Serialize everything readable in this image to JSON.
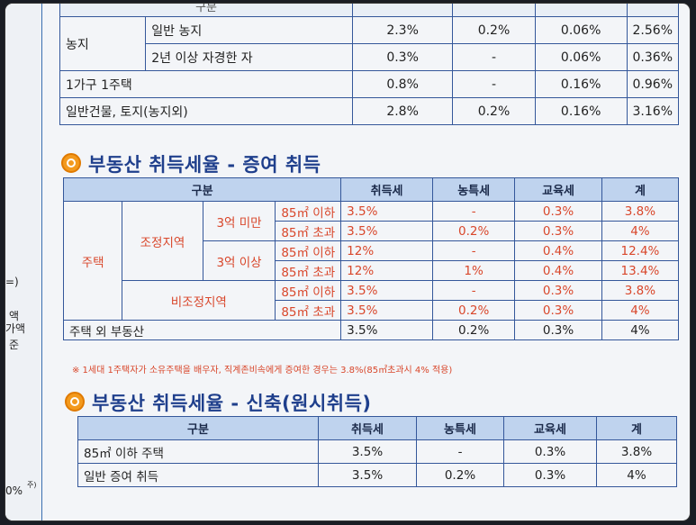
{
  "left_strip": {
    "items": [
      "=)",
      "액",
      "가액",
      "준",
      "0%",
      "주)"
    ]
  },
  "table1": {
    "header_partial": "구분",
    "rows": [
      {
        "g1": "농지",
        "g2": "일반 농지",
        "acq": "2.3%",
        "farm": "0.2%",
        "edu": "0.06%",
        "total": "2.56%"
      },
      {
        "g2": "2년 이상 자경한 자",
        "acq": "0.3%",
        "farm": "-",
        "edu": "0.06%",
        "total": "0.36%"
      },
      {
        "g1": "1가구 1주택",
        "acq": "0.8%",
        "farm": "-",
        "edu": "0.16%",
        "total": "0.96%"
      },
      {
        "g1": "일반건물, 토지(농지외)",
        "acq": "2.8%",
        "farm": "0.2%",
        "edu": "0.16%",
        "total": "3.16%"
      }
    ]
  },
  "section2": {
    "title": "부동산 취득세율 - 증여 취득",
    "headers": [
      "구분",
      "취득세",
      "농특세",
      "교육세",
      "계"
    ],
    "house": "주택",
    "adjusted": "조정지역",
    "non_adjusted": "비조정지역",
    "under3": "3억 미만",
    "over3": "3억 이상",
    "rows": [
      {
        "size": "85㎡ 이하",
        "acq": "3.5%",
        "farm": "-",
        "edu": "0.3%",
        "total": "3.8%"
      },
      {
        "size": "85㎡ 초과",
        "acq": "3.5%",
        "farm": "0.2%",
        "edu": "0.3%",
        "total": "4%"
      },
      {
        "size": "85㎡ 이하",
        "acq": "12%",
        "farm": "-",
        "edu": "0.4%",
        "total": "12.4%"
      },
      {
        "size": "85㎡ 초과",
        "acq": "12%",
        "farm": "1%",
        "edu": "0.4%",
        "total": "13.4%"
      },
      {
        "size": "85㎡ 이하",
        "acq": "3.5%",
        "farm": "-",
        "edu": "0.3%",
        "total": "3.8%"
      },
      {
        "size": "85㎡ 초과",
        "acq": "3.5%",
        "farm": "0.2%",
        "edu": "0.3%",
        "total": "4%"
      }
    ],
    "other": {
      "label": "주택 외 부동산",
      "acq": "3.5%",
      "farm": "0.2%",
      "edu": "0.3%",
      "total": "4%"
    },
    "note": "※ 1세대 1주택자가 소유주택을 배우자, 직계존비속에게 증여한 경우는 3.8%(85㎡초과시 4% 적용)"
  },
  "section3": {
    "title": "부동산 취득세율 - 신축(원시취득)",
    "headers": [
      "구분",
      "취득세",
      "농특세",
      "교육세",
      "계"
    ],
    "rows": [
      {
        "label": "85㎡ 이하 주택",
        "acq": "3.5%",
        "farm": "-",
        "edu": "0.3%",
        "total": "3.8%"
      },
      {
        "label": "일반 증여 취득",
        "acq": "3.5%",
        "farm": "0.2%",
        "edu": "0.3%",
        "total": "4%"
      }
    ]
  },
  "colors": {
    "header_bg": "#bfd3ee",
    "border": "#34579a",
    "title": "#1f3f8c",
    "red": "#d9472b",
    "icon": "#f39a1e"
  }
}
